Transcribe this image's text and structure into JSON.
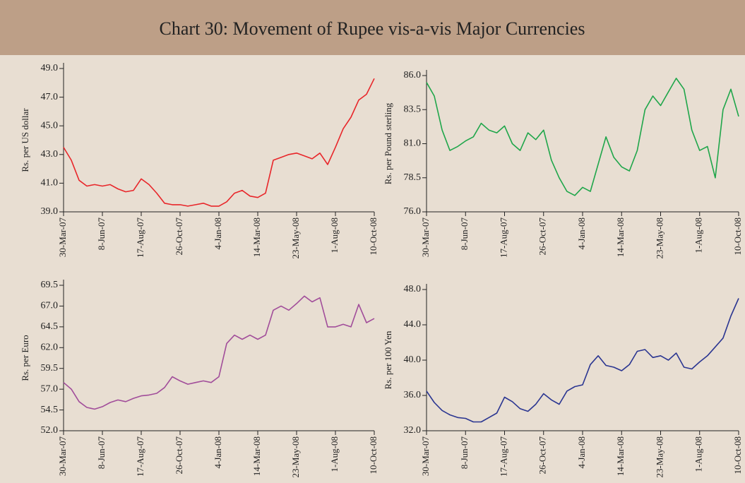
{
  "title": "Chart 30: Movement of Rupee vis-a-vis Major Currencies",
  "chart_data": [
    {
      "type": "line",
      "y_label": "Rs. per US dollar",
      "categories": [
        "30-Mar-07",
        null,
        null,
        null,
        null,
        "8-Jun-07",
        null,
        null,
        null,
        null,
        "17-Aug-07",
        null,
        null,
        null,
        null,
        "26-Oct-07",
        null,
        null,
        null,
        null,
        "4-Jan-08",
        null,
        null,
        null,
        null,
        "14-Mar-08",
        null,
        null,
        null,
        null,
        "23-May-08",
        null,
        null,
        null,
        null,
        "1-Aug-08",
        null,
        null,
        null,
        null,
        "10-Oct-08"
      ],
      "series": [
        {
          "name": "US dollar",
          "color": "#e8262a",
          "values": [
            43.5,
            42.6,
            41.2,
            40.8,
            40.9,
            40.8,
            40.9,
            40.6,
            40.4,
            40.5,
            41.3,
            40.9,
            40.3,
            39.6,
            39.5,
            39.5,
            39.4,
            39.5,
            39.6,
            39.4,
            39.4,
            39.7,
            40.3,
            40.5,
            40.1,
            40.0,
            40.3,
            42.6,
            42.8,
            43.0,
            43.1,
            42.9,
            42.7,
            43.1,
            42.3,
            43.5,
            44.8,
            45.6,
            46.8,
            47.2,
            48.3
          ]
        }
      ],
      "ylim": [
        39,
        49
      ],
      "yticks": [
        {
          "value": 39,
          "label": "39.0"
        },
        {
          "value": 41,
          "label": "41.0"
        },
        {
          "value": 43,
          "label": "43.0"
        },
        {
          "value": 45,
          "label": "45.0"
        },
        {
          "value": 47,
          "label": "47.0"
        },
        {
          "value": 49,
          "label": "49.0"
        }
      ]
    },
    {
      "type": "line",
      "y_label": "Rs. per Pound sterling",
      "categories": [
        "30-Mar-07",
        null,
        null,
        null,
        null,
        "8-Jun-07",
        null,
        null,
        null,
        null,
        "17-Aug-07",
        null,
        null,
        null,
        null,
        "26-Oct-07",
        null,
        null,
        null,
        null,
        "4-Jan-08",
        null,
        null,
        null,
        null,
        "14-Mar-08",
        null,
        null,
        null,
        null,
        "23-May-08",
        null,
        null,
        null,
        null,
        "1-Aug-08",
        null,
        null,
        null,
        null,
        "10-Oct-08"
      ],
      "series": [
        {
          "name": "Pound sterling",
          "color": "#1fa64a",
          "values": [
            85.5,
            84.5,
            82,
            80.5,
            80.8,
            81.2,
            81.5,
            82.5,
            82,
            81.8,
            82.3,
            81,
            80.5,
            81.8,
            81.3,
            82,
            79.8,
            78.5,
            77.5,
            77.2,
            77.8,
            77.5,
            79.5,
            81.5,
            80,
            79.3,
            79.0,
            80.5,
            83.5,
            84.5,
            83.8,
            84.8,
            85.8,
            85,
            82,
            80.5,
            80.8,
            78.5,
            83.5,
            85,
            83
          ]
        }
      ],
      "ylim": [
        76,
        86
      ],
      "yticks": [
        {
          "value": 76,
          "label": "76.0"
        },
        78.5,
        {
          "value": 81,
          "label": "81.0"
        },
        83.5,
        {
          "value": 86,
          "label": "86.0"
        }
      ]
    },
    {
      "type": "line",
      "y_label": "Rs. per Euro",
      "categories": [
        "30-Mar-07",
        null,
        null,
        null,
        null,
        "8-Jun-07",
        null,
        null,
        null,
        null,
        "17-Aug-07",
        null,
        null,
        null,
        null,
        "26-Oct-07",
        null,
        null,
        null,
        null,
        "4-Jan-08",
        null,
        null,
        null,
        null,
        "14-Mar-08",
        null,
        null,
        null,
        null,
        "23-May-08",
        null,
        null,
        null,
        null,
        "1-Aug-08",
        null,
        null,
        null,
        null,
        "10-Oct-08"
      ],
      "series": [
        {
          "name": "Euro",
          "color": "#a14d9a",
          "values": [
            57.8,
            57,
            55.5,
            54.8,
            54.6,
            54.9,
            55.4,
            55.7,
            55.5,
            55.9,
            56.2,
            56.3,
            56.5,
            57.2,
            58.5,
            58,
            57.6,
            57.8,
            58.0,
            57.8,
            58.5,
            62.5,
            63.5,
            63,
            63.5,
            63,
            63.5,
            66.5,
            67,
            66.5,
            67.3,
            68.2,
            67.5,
            68,
            64.5,
            64.5,
            64.8,
            64.5,
            67.2,
            65,
            65.5
          ]
        }
      ],
      "ylim": [
        52,
        69.5
      ],
      "yticks": [
        {
          "value": 52,
          "label": "52.0"
        },
        54.5,
        {
          "value": 57,
          "label": "57.0"
        },
        59.5,
        {
          "value": 62,
          "label": "62.0"
        },
        64.5,
        {
          "value": 67,
          "label": "67.0"
        },
        69.5
      ]
    },
    {
      "type": "line",
      "y_label": "Rs. per 100 Yen",
      "categories": [
        "30-Mar-07",
        null,
        null,
        null,
        null,
        "8-Jun-07",
        null,
        null,
        null,
        null,
        "17-Aug-07",
        null,
        null,
        null,
        null,
        "26-Oct-07",
        null,
        null,
        null,
        null,
        "4-Jan-08",
        null,
        null,
        null,
        null,
        "14-Mar-08",
        null,
        null,
        null,
        null,
        "23-May-08",
        null,
        null,
        null,
        null,
        "1-Aug-08",
        null,
        null,
        null,
        null,
        "10-Oct-08"
      ],
      "series": [
        {
          "name": "100 Yen",
          "color": "#2a3591",
          "values": [
            36.5,
            35.2,
            34.3,
            33.8,
            33.5,
            33.4,
            33,
            33,
            33.5,
            34,
            35.8,
            35.3,
            34.5,
            34.2,
            35,
            36.2,
            35.5,
            35,
            36.5,
            37,
            37.2,
            39.5,
            40.5,
            39.4,
            39.2,
            38.8,
            39.5,
            41,
            41.2,
            40.3,
            40.5,
            40,
            40.8,
            39.2,
            39,
            39.8,
            40.5,
            41.5,
            42.5,
            45,
            47
          ]
        }
      ],
      "ylim": [
        32,
        48
      ],
      "yticks": [
        {
          "value": 32,
          "label": "32.0"
        },
        {
          "value": 36,
          "label": "36.0"
        },
        {
          "value": 40,
          "label": "40.0"
        },
        {
          "value": 44,
          "label": "44.0"
        },
        {
          "value": 48,
          "label": "48.0"
        }
      ]
    }
  ]
}
